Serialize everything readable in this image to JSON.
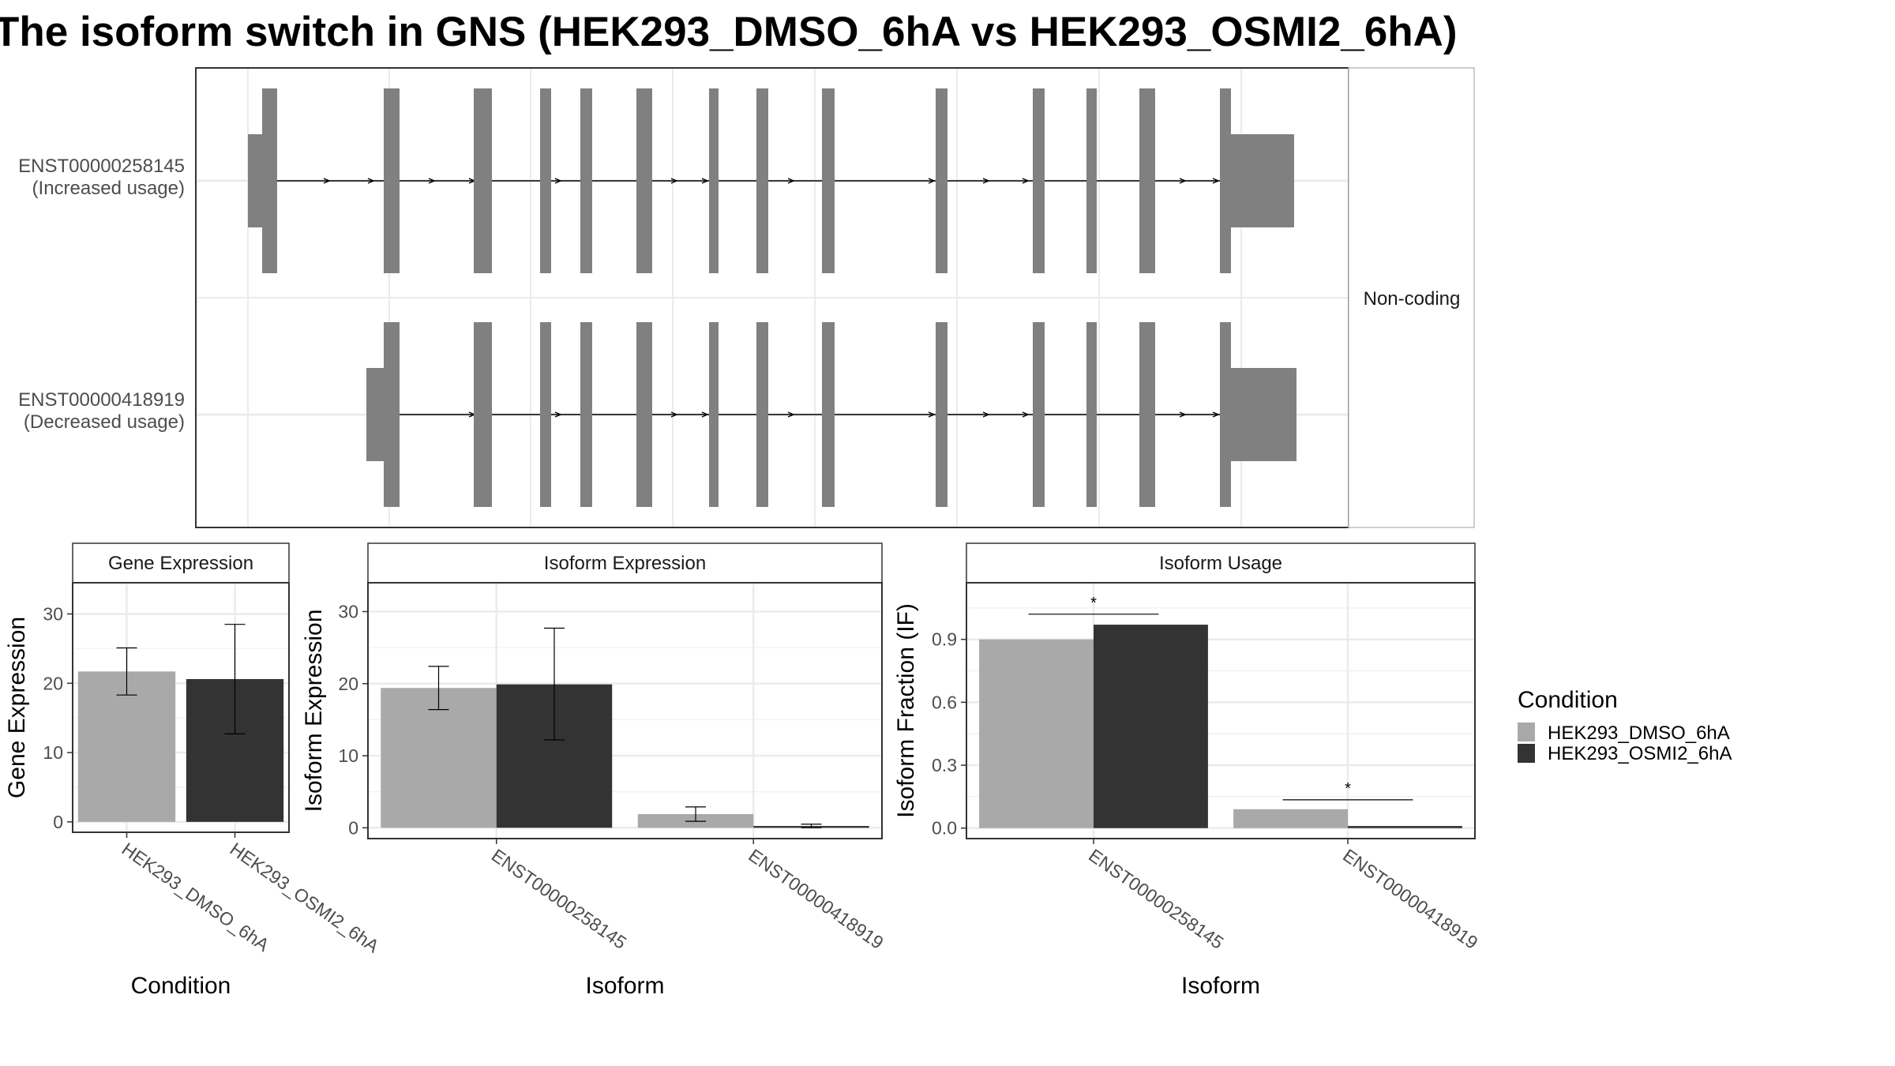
{
  "title": "The isoform switch in GNS (HEK293_DMSO_6hA vs HEK293_OSMI2_6hA)",
  "colors": {
    "condition_1": "#a9a9a9",
    "condition_2": "#333333",
    "exon": "#808080",
    "grid": "#ebebeb",
    "panel_border": "#333333",
    "strip_border": "#333333",
    "strip_fill": "#ffffff"
  },
  "legend": {
    "title": "Condition",
    "placement": "right",
    "items": [
      "HEK293_DMSO_6hA",
      "HEK293_OSMI2_6hA"
    ]
  },
  "chart_data": [
    {
      "type": "gene-structure",
      "facet_label": "Non-coding",
      "transcripts": [
        {
          "label_id": "ENST00000258145",
          "label_usage": "(Increased usage)"
        },
        {
          "label_id": "ENST00000418919",
          "label_usage": "(Decreased usage)"
        }
      ]
    },
    {
      "type": "bar",
      "strip_title": "Gene Expression",
      "xlabel": "Condition",
      "ylabel": "Gene Expression",
      "categories": [
        "HEK293_DMSO_6hA",
        "HEK293_OSMI2_6hA"
      ],
      "values": [
        21.7,
        20.6
      ],
      "error_low": [
        18.3,
        12.7
      ],
      "error_high": [
        25.1,
        28.5
      ],
      "ylim": [
        -1.5,
        34.5
      ],
      "yticks": [
        0,
        10,
        20,
        30
      ],
      "grid": true
    },
    {
      "type": "bar",
      "strip_title": "Isoform Expression",
      "xlabel": "Isoform",
      "ylabel": "Isoform Expression",
      "categories": [
        "ENST00000258145",
        "ENST00000418919"
      ],
      "series": [
        {
          "name": "HEK293_DMSO_6hA",
          "values": [
            19.4,
            1.9
          ],
          "error_low": [
            16.4,
            0.9
          ],
          "error_high": [
            22.4,
            2.9
          ]
        },
        {
          "name": "HEK293_OSMI2_6hA",
          "values": [
            19.9,
            0.25
          ],
          "error_low": [
            12.2,
            0.0
          ],
          "error_high": [
            27.7,
            0.5
          ]
        }
      ],
      "ylim": [
        -1.5,
        34
      ],
      "yticks": [
        0,
        10,
        20,
        30
      ],
      "grid": true
    },
    {
      "type": "bar",
      "strip_title": "Isoform Usage",
      "xlabel": "Isoform",
      "ylabel": "Isoform Fraction (IF)",
      "categories": [
        "ENST00000258145",
        "ENST00000418919"
      ],
      "series": [
        {
          "name": "HEK293_DMSO_6hA",
          "values": [
            0.9,
            0.09
          ]
        },
        {
          "name": "HEK293_OSMI2_6hA",
          "values": [
            0.97,
            0.01
          ]
        }
      ],
      "significance": [
        {
          "category": "ENST00000258145",
          "label": "*",
          "y": 1.02
        },
        {
          "category": "ENST00000418919",
          "label": "*",
          "y": 0.135
        }
      ],
      "ylim": [
        -0.05,
        1.17
      ],
      "yticks": [
        "0.0",
        "0.3",
        "0.6",
        "0.9"
      ],
      "grid": true
    }
  ]
}
